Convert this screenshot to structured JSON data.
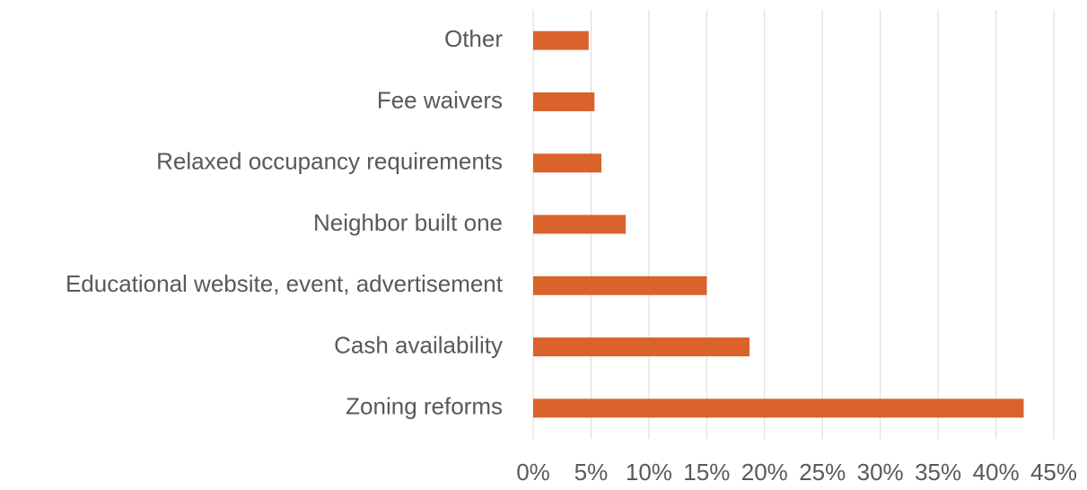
{
  "chart_data": {
    "type": "hbar",
    "categories": [
      "Other",
      "Fee waivers",
      "Relaxed occupancy requirements",
      "Neighbor built one",
      "Educational website, event, advertisement",
      "Cash availability",
      "Zoning reforms"
    ],
    "values": [
      4.8,
      5.3,
      5.9,
      8.0,
      15.0,
      18.7,
      42.4
    ],
    "color": "#d9632b",
    "xlim": [
      0,
      45
    ],
    "xticks": [
      {
        "value": 0,
        "label": "0%"
      },
      {
        "value": 5,
        "label": "5%"
      },
      {
        "value": 10,
        "label": "10%"
      },
      {
        "value": 15,
        "label": "15%"
      },
      {
        "value": 20,
        "label": "20%"
      },
      {
        "value": 25,
        "label": "25%"
      },
      {
        "value": 30,
        "label": "30%"
      },
      {
        "value": 35,
        "label": "35%"
      },
      {
        "value": 40,
        "label": "40%"
      },
      {
        "value": 45,
        "label": "45%"
      }
    ],
    "grid": true
  }
}
